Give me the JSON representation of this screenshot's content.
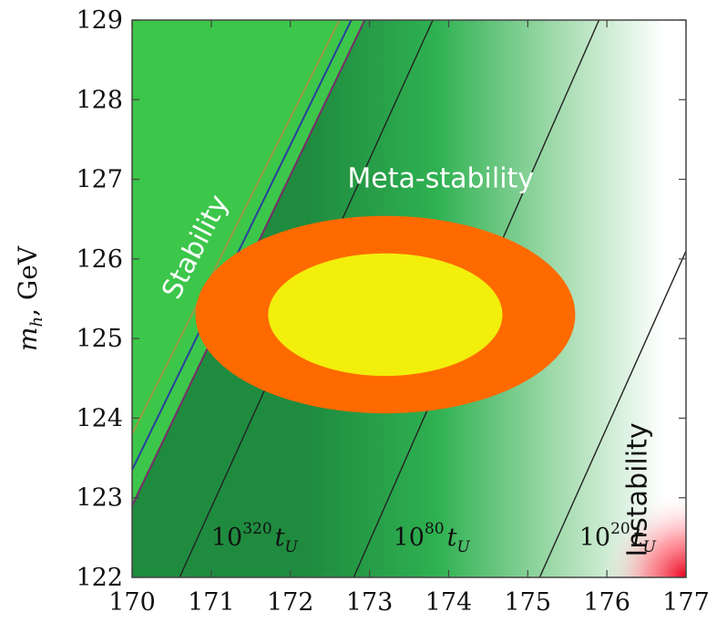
{
  "chart_data": {
    "type": "heatmap",
    "title": "",
    "xlabel": "",
    "ylabel_main": "m",
    "ylabel_sub": "h",
    "ylabel_unit": ", GeV",
    "xlim": [
      170,
      177
    ],
    "ylim": [
      122,
      129
    ],
    "x_ticks": [
      "170",
      "171",
      "172",
      "173",
      "174",
      "175",
      "176",
      "177"
    ],
    "y_ticks": [
      "122",
      "123",
      "124",
      "125",
      "126",
      "127",
      "128",
      "129"
    ],
    "grid": false,
    "legend": "none",
    "regions": [
      {
        "label": "Stability",
        "color": "#3cc64a",
        "text_color": "#ffffff",
        "label_at": {
          "x": 170.9,
          "y": 126.1
        },
        "rotation": -63
      },
      {
        "label": "Meta-stability",
        "color": "#1a8a3c",
        "text_color": "#ffffff",
        "label_at": {
          "x": 173.9,
          "y": 126.9
        },
        "rotation": 0
      },
      {
        "label": "Instability",
        "color": "#e8001c",
        "text_color": "#111111",
        "label_at": {
          "x": 176.5,
          "y": 123.1
        },
        "rotation": -90
      }
    ],
    "colors": {
      "stability": "#3cc64a",
      "metastable_dark": "#1f8b3f",
      "metastable_mid": "#2fb151",
      "fade_light": "#ffffff",
      "instability": "#e8001c",
      "sigma2": "#ff6a00",
      "sigma1": "#f2ef0c",
      "line_blue": "#2a3f9e",
      "line_purple": "#7a2a6a",
      "line_olive": "#9a9a40",
      "contour": "#222222"
    },
    "boundary_lines": [
      {
        "name": "boundary-purple",
        "color": "#7a2a6a",
        "points": [
          [
            170.0,
            122.9
          ],
          [
            172.94,
            129.0
          ]
        ]
      },
      {
        "name": "boundary-blue",
        "color": "#2a3f9e",
        "points": [
          [
            170.0,
            123.35
          ],
          [
            172.77,
            129.0
          ]
        ]
      },
      {
        "name": "boundary-olive",
        "color": "#9a9a40",
        "points": [
          [
            170.0,
            123.8
          ],
          [
            172.62,
            129.0
          ]
        ]
      }
    ],
    "lifetime_contours": [
      {
        "base": "10",
        "exponent": "320",
        "unit": "t",
        "unit_sub": "U",
        "points": [
          [
            170.6,
            122.0
          ],
          [
            173.8,
            129.0
          ]
        ],
        "label_at": {
          "x": 171.0,
          "y": 122.4
        }
      },
      {
        "base": "10",
        "exponent": "80",
        "unit": "t",
        "unit_sub": "U",
        "points": [
          [
            172.8,
            122.0
          ],
          [
            175.9,
            129.0
          ]
        ],
        "label_at": {
          "x": 173.3,
          "y": 122.4
        }
      },
      {
        "base": "10",
        "exponent": "20",
        "unit": "t",
        "unit_sub": "U",
        "points": [
          [
            175.15,
            122.0
          ],
          [
            177.0,
            126.1
          ]
        ],
        "label_at": {
          "x": 175.65,
          "y": 122.4
        }
      }
    ],
    "ellipses": [
      {
        "name": "2-sigma",
        "color": "#ff6a00",
        "center": {
          "x": 173.2,
          "y": 125.3
        },
        "half_width": 2.4,
        "half_height": 1.24
      },
      {
        "name": "1-sigma",
        "color": "#f2ef0c",
        "center": {
          "x": 173.2,
          "y": 125.3
        },
        "half_width": 1.48,
        "half_height": 0.77
      }
    ]
  }
}
